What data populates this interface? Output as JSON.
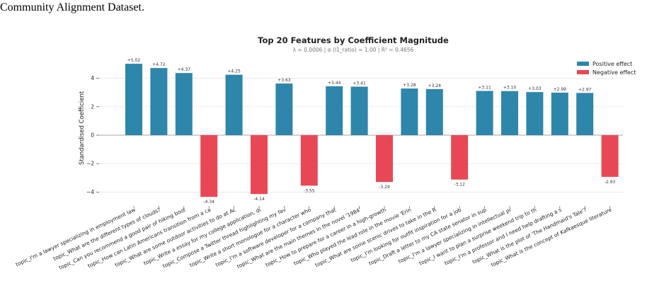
{
  "caption": {
    "line1": "",
    "line2": "Community Alignment Dataset."
  },
  "chart_data": {
    "type": "bar",
    "title": "Top 20 Features by Coefficient Magnitude",
    "subtitle": "λ = 0.0006   |   α (l1_ratio) = 1.00   |   R² = 0.4656",
    "xlabel": "",
    "ylabel": "Standardised Coefficient",
    "ylim": [
      -4.8,
      5.55
    ],
    "yticks": [
      -4,
      -2,
      0,
      2,
      4
    ],
    "grid": "horizontal",
    "legend_position": "top-right",
    "colors": {
      "positive": "#2e86ab",
      "negative": "#e84855"
    },
    "legend": [
      "Positive effect",
      "Negative effect"
    ],
    "categories": [
      "topic_I'm a lawyer specializing in employment law",
      "topic_What are the different types of clouds?",
      "topic_Can you recommend a good pair of hiking boot",
      "topic_How can Latin Americans transition from a ca",
      "topic_What are some outdoor activities to do at Ac",
      "topic_Write a essay for my college application, di",
      "topic_Compose a Twitter thread highlighting my fav",
      "topic_Write a short monologue for a character who",
      "topic_I'm a software developer for a company that",
      "topic_What are the main themes in the novel '1984'",
      "topic_How to prepare for a career in a high-growth",
      "topic_Who played the lead role in the movie 'Erin",
      "topic_What are some scenic drives to take in the R",
      "topic_I'm looking for outfit inspiration for a job",
      "topic_Draft a letter to my CA state senator in sup",
      "topic_I'm a lawyer specializing in intellectual pr",
      "topic_I want to plan a surprise weekend trip to th",
      "topic_I'm a professor and I need help drafting a s",
      "topic_What is the plot of 'The Handmaid's Tale'?",
      "topic_What is the concept of Kafkaesque literature"
    ],
    "values": [
      5.02,
      4.72,
      4.37,
      -4.34,
      4.25,
      -4.14,
      3.63,
      -3.55,
      3.44,
      3.41,
      -3.29,
      3.28,
      3.24,
      -3.12,
      3.11,
      3.1,
      3.03,
      2.99,
      2.97,
      -2.93
    ],
    "value_labels": [
      "+5.02",
      "+4.72",
      "+4.37",
      "-4.34",
      "+4.25",
      "-4.14",
      "+3.63",
      "-3.55",
      "+3.44",
      "+3.41",
      "-3.29",
      "+3.28",
      "+3.24",
      "-3.12",
      "+3.11",
      "+3.10",
      "+3.03",
      "+2.99",
      "+2.97",
      "-2.93"
    ]
  }
}
